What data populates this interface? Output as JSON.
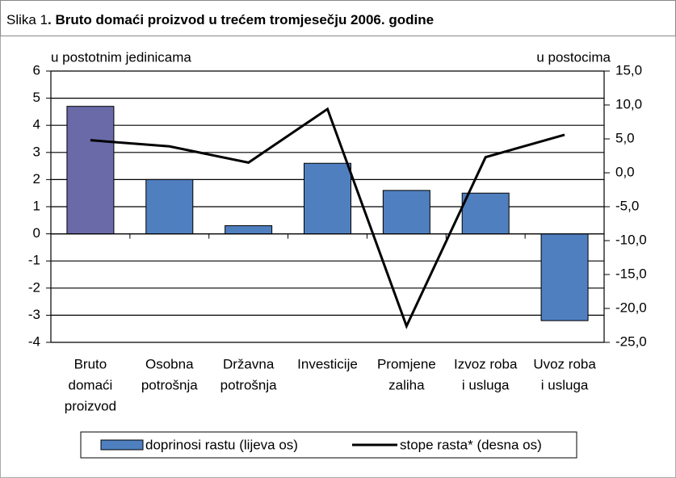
{
  "chart_data": {
    "type": "bar_line",
    "label": "Slika 1",
    "title": ". Bruto domaći proizvod u trećem tromjesečju 2006. godine",
    "ylabel": "u postotnim jedinicama",
    "y2label": "u postocima",
    "categories": [
      [
        "Bruto",
        "domaći",
        "proizvod"
      ],
      [
        "Osobna",
        "potrošnja"
      ],
      [
        "Državna",
        "potrošnja"
      ],
      [
        "Investicije"
      ],
      [
        "Promjene",
        "zaliha"
      ],
      [
        "Izvoz roba",
        "i usluga"
      ],
      [
        "Uvoz roba",
        "i usluga"
      ]
    ],
    "series": [
      {
        "name": "doprinosi rastu (lijeva os)",
        "type": "bar",
        "color": "#4f7fbf",
        "highlight_color": "#6a6aa8",
        "values": [
          4.7,
          2.0,
          0.3,
          2.6,
          1.6,
          1.5,
          -3.2
        ]
      },
      {
        "name": "stope rasta* (desna os)",
        "type": "line",
        "axis": "y2",
        "color": "#000000",
        "values": [
          4.8,
          3.9,
          1.5,
          9.4,
          -22.6,
          2.3,
          5.6
        ]
      }
    ],
    "ylim": [
      -4,
      6
    ],
    "yticks": [
      -4,
      -3,
      -2,
      -1,
      0,
      1,
      2,
      3,
      4,
      5,
      6
    ],
    "y2lim": [
      -25,
      15
    ],
    "y2ticks": [
      {
        "value": -25,
        "label": "-25,0"
      },
      {
        "value": -20,
        "label": "-20,0"
      },
      {
        "value": -15,
        "label": "-15,0"
      },
      {
        "value": -10,
        "label": "-10,0"
      },
      {
        "value": -5,
        "label": "-5,0"
      },
      {
        "value": 0,
        "label": "0,0"
      },
      {
        "value": 5,
        "label": "5,0"
      },
      {
        "value": 10,
        "label": "10,0"
      },
      {
        "value": 15,
        "label": "15,0"
      }
    ],
    "grid": true,
    "legend": "bottom"
  }
}
